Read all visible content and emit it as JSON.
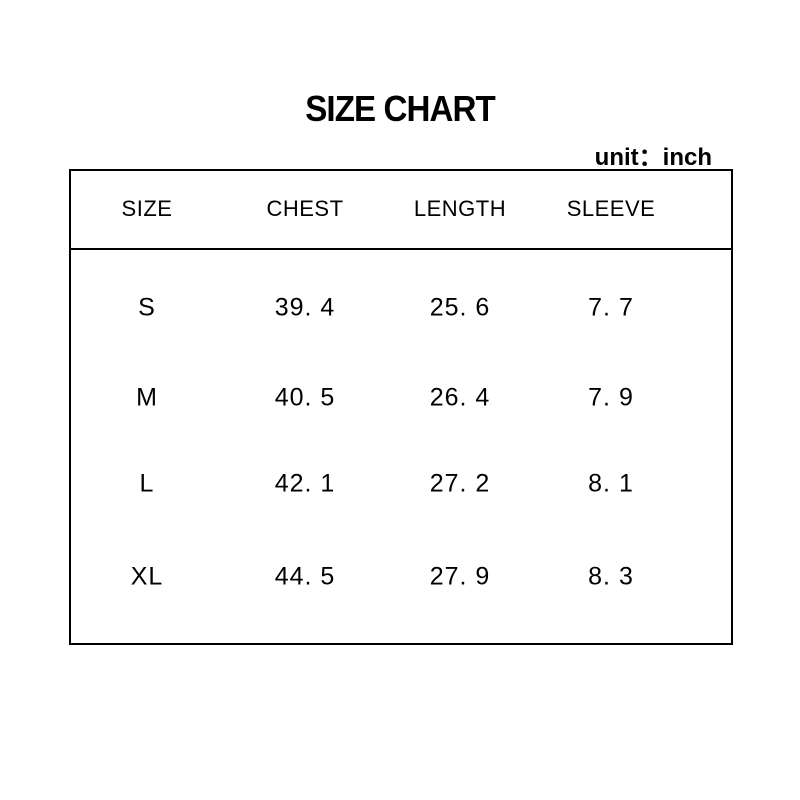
{
  "title": "SIZE CHART",
  "unit": "unit：inch",
  "headers": [
    "SIZE",
    "CHEST",
    "LENGTH",
    "SLEEVE"
  ],
  "rows": [
    [
      "S",
      "39. 4",
      "25. 6",
      "7. 7"
    ],
    [
      "M",
      "40. 5",
      "26. 4",
      "7. 9"
    ],
    [
      "L",
      "42. 1",
      "27. 2",
      "8. 1"
    ],
    [
      "XL",
      "44. 5",
      "27. 9",
      "8. 3"
    ]
  ]
}
